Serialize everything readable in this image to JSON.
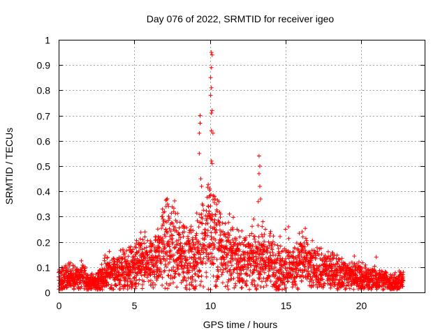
{
  "chart_data": {
    "type": "scatter",
    "title": "Day 076 of 2022, SRMTID for receiver igeo",
    "xlabel": "GPS time / hours",
    "ylabel": "SRMTID / TECUs",
    "xlim": [
      0,
      24.2
    ],
    "ylim": [
      0,
      1
    ],
    "x_ticks": [
      "0",
      "5",
      "10",
      "15",
      "20"
    ],
    "y_ticks": [
      "0",
      "0.1",
      "0.2",
      "0.3",
      "0.4",
      "0.5",
      "0.6",
      "0.7",
      "0.8",
      "0.9",
      "1"
    ],
    "grid": true,
    "marker": "+",
    "series_color": "#ff0000",
    "series": [
      {
        "name": "SRMTID",
        "baseline": [
          [
            0,
            0.06
          ],
          [
            0.5,
            0.05
          ],
          [
            1,
            0.06
          ],
          [
            1.5,
            0.06
          ],
          [
            2,
            0.04
          ],
          [
            2.5,
            0.04
          ],
          [
            3,
            0.07
          ],
          [
            3.5,
            0.08
          ],
          [
            4,
            0.08
          ],
          [
            4.5,
            0.09
          ],
          [
            5,
            0.1
          ],
          [
            5.5,
            0.12
          ],
          [
            6,
            0.1
          ],
          [
            6.5,
            0.14
          ],
          [
            7,
            0.2
          ],
          [
            7.5,
            0.17
          ],
          [
            8,
            0.16
          ],
          [
            8.5,
            0.15
          ],
          [
            9,
            0.13
          ],
          [
            9.5,
            0.2
          ],
          [
            10,
            0.24
          ],
          [
            10.5,
            0.18
          ],
          [
            11,
            0.15
          ],
          [
            11.5,
            0.15
          ],
          [
            12,
            0.13
          ],
          [
            12.5,
            0.12
          ],
          [
            13,
            0.13
          ],
          [
            13.5,
            0.13
          ],
          [
            14,
            0.12
          ],
          [
            14.5,
            0.1
          ],
          [
            15,
            0.1
          ],
          [
            15.5,
            0.1
          ],
          [
            16,
            0.13
          ],
          [
            16.5,
            0.1
          ],
          [
            17,
            0.09
          ],
          [
            17.5,
            0.08
          ],
          [
            18,
            0.09
          ],
          [
            18.5,
            0.08
          ],
          [
            19,
            0.07
          ],
          [
            19.5,
            0.07
          ],
          [
            20,
            0.06
          ],
          [
            20.5,
            0.05
          ],
          [
            21,
            0.05
          ],
          [
            21.5,
            0.05
          ],
          [
            22,
            0.04
          ],
          [
            22.5,
            0.04
          ],
          [
            22.8,
            0.05
          ]
        ],
        "peaks": [
          [
            9.35,
            0.7
          ],
          [
            9.35,
            0.67
          ],
          [
            9.3,
            0.63
          ],
          [
            9.3,
            0.55
          ],
          [
            9.4,
            0.45
          ],
          [
            9.45,
            0.42
          ],
          [
            9.5,
            0.35
          ],
          [
            9.45,
            0.31
          ],
          [
            10.1,
            0.95
          ],
          [
            10.15,
            0.94
          ],
          [
            10.1,
            0.89
          ],
          [
            10.05,
            0.85
          ],
          [
            10.1,
            0.81
          ],
          [
            10.05,
            0.78
          ],
          [
            10.15,
            0.72
          ],
          [
            10.1,
            0.71
          ],
          [
            10.1,
            0.64
          ],
          [
            10.2,
            0.63
          ],
          [
            10.1,
            0.52
          ],
          [
            10.15,
            0.51
          ],
          [
            10.3,
            0.38
          ],
          [
            10.35,
            0.37
          ],
          [
            10.6,
            0.36
          ],
          [
            10.7,
            0.31
          ],
          [
            7.0,
            0.32
          ],
          [
            7.1,
            0.34
          ],
          [
            7.2,
            0.35
          ],
          [
            6.9,
            0.29
          ],
          [
            13.25,
            0.54
          ],
          [
            13.3,
            0.5
          ],
          [
            13.25,
            0.47
          ],
          [
            13.3,
            0.42
          ],
          [
            13.2,
            0.36
          ],
          [
            13.35,
            0.37
          ],
          [
            12.9,
            0.29
          ],
          [
            13.5,
            0.28
          ],
          [
            11.8,
            0.25
          ],
          [
            16.1,
            0.24
          ],
          [
            16.15,
            0.22
          ],
          [
            15.0,
            0.25
          ],
          [
            15.2,
            0.26
          ],
          [
            8.3,
            0.24
          ],
          [
            8.0,
            0.23
          ],
          [
            4.3,
            0.16
          ],
          [
            5.4,
            0.19
          ],
          [
            21.0,
            0.14
          ]
        ]
      }
    ]
  }
}
